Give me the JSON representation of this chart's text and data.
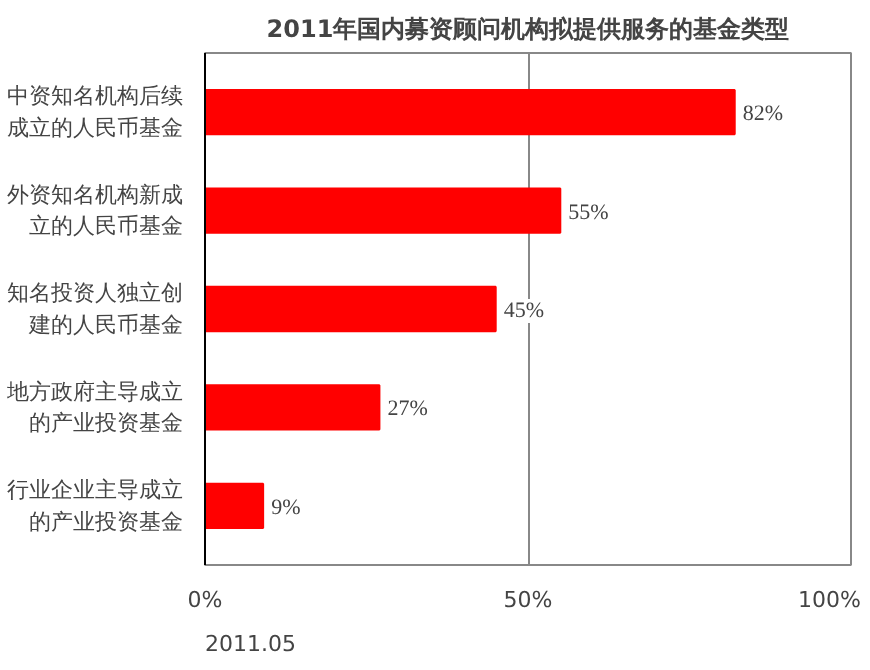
{
  "chart_data": {
    "type": "bar",
    "orientation": "horizontal",
    "title": "2011年国内募资顾问机构拟提供服务的基金类型",
    "categories": [
      "中资知名机构后续成立的人民币基金",
      "外资知名机构新成立的人民币基金",
      "知名投资人独立创建的人民币基金",
      "地方政府主导成立的产业投资基金",
      "行业企业主导成立的产业投资基金"
    ],
    "values": [
      82,
      55,
      45,
      27,
      9
    ],
    "value_labels": [
      "82%",
      "55%",
      "45%",
      "27%",
      "9%"
    ],
    "color": "#ff0000",
    "xlim": [
      0,
      100
    ],
    "xticks": [
      {
        "value": 0,
        "label": "0%"
      },
      {
        "value": 50,
        "label": "50%"
      },
      {
        "value": 100,
        "label": "100%"
      }
    ],
    "grid": "x",
    "annotations": [
      "2011.05"
    ]
  }
}
